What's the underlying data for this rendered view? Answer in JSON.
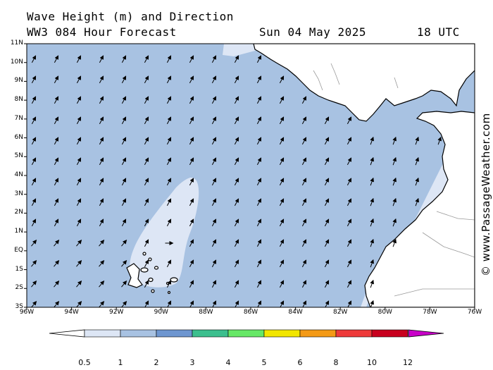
{
  "header": {
    "title": "Wave Height (m) and Direction",
    "model": "WW3 084 Hour Forecast",
    "date": "Sun 04 May 2025",
    "time": "18 UTC"
  },
  "credit": "© www.PassageWeather.com",
  "axes": {
    "lat_labels": [
      "11N",
      "10N",
      "9N",
      "8N",
      "7N",
      "6N",
      "5N",
      "4N",
      "3N",
      "2N",
      "1N",
      "EQ",
      "1S",
      "2S",
      "3S"
    ],
    "lon_labels": [
      "96W",
      "94W",
      "92W",
      "90W",
      "88W",
      "86W",
      "84W",
      "82W",
      "80W",
      "78W",
      "76W"
    ]
  },
  "colorbar": {
    "labels": [
      "0.5",
      "1",
      "2",
      "3",
      "4",
      "5",
      "6",
      "8",
      "10",
      "12"
    ],
    "colors": [
      "#dde6f5",
      "#a8c2e2",
      "#6e96d0",
      "#3cbf8e",
      "#66e866",
      "#f2e600",
      "#f49a16",
      "#ee3a3a",
      "#c8001e",
      "#c800c8"
    ]
  },
  "colors": {
    "ocean_main": "#a8c2e2",
    "ocean_light": "#dde6f5",
    "land": "#ffffff",
    "coast": "#000000",
    "border": "#999999"
  }
}
